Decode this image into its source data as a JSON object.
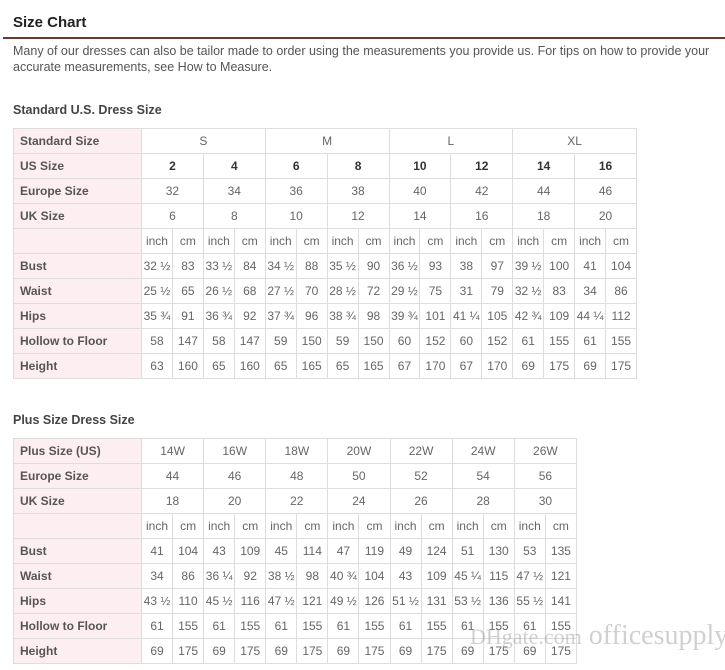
{
  "title": "Size Chart",
  "intro": "Many of our dresses can also be tailor made to order using the measurements you provide us. For tips on how to provide your accurate measurements, see How to Measure.",
  "standard": {
    "heading": "Standard U.S. Dress Size",
    "size_label": "Standard Size",
    "sizes": [
      "S",
      "M",
      "L",
      "XL"
    ],
    "us_label": "US Size",
    "us": [
      "2",
      "4",
      "6",
      "8",
      "10",
      "12",
      "14",
      "16"
    ],
    "europe_label": "Europe Size",
    "europe": [
      "32",
      "34",
      "36",
      "38",
      "40",
      "42",
      "44",
      "46"
    ],
    "uk_label": "UK Size",
    "uk": [
      "6",
      "8",
      "10",
      "12",
      "14",
      "16",
      "18",
      "20"
    ],
    "units": [
      "inch",
      "cm"
    ],
    "rows": [
      {
        "label": "Bust",
        "values": [
          "32 ½",
          "83",
          "33 ½",
          "84",
          "34 ½",
          "88",
          "35 ½",
          "90",
          "36 ½",
          "93",
          "38",
          "97",
          "39 ½",
          "100",
          "41",
          "104"
        ]
      },
      {
        "label": "Waist",
        "values": [
          "25 ½",
          "65",
          "26 ½",
          "68",
          "27 ½",
          "70",
          "28 ½",
          "72",
          "29 ½",
          "75",
          "31",
          "79",
          "32 ½",
          "83",
          "34",
          "86"
        ]
      },
      {
        "label": "Hips",
        "values": [
          "35 ¾",
          "91",
          "36 ¾",
          "92",
          "37 ¾",
          "96",
          "38 ¾",
          "98",
          "39 ¾",
          "101",
          "41 ¼",
          "105",
          "42 ¾",
          "109",
          "44 ¼",
          "112"
        ]
      },
      {
        "label": "Hollow to Floor",
        "values": [
          "58",
          "147",
          "58",
          "147",
          "59",
          "150",
          "59",
          "150",
          "60",
          "152",
          "60",
          "152",
          "61",
          "155",
          "61",
          "155"
        ]
      },
      {
        "label": "Height",
        "values": [
          "63",
          "160",
          "65",
          "160",
          "65",
          "165",
          "65",
          "165",
          "67",
          "170",
          "67",
          "170",
          "69",
          "175",
          "69",
          "175"
        ]
      }
    ]
  },
  "plus": {
    "heading": "Plus Size Dress Size",
    "size_label": "Plus Size (US)",
    "sizes": [
      "14W",
      "16W",
      "18W",
      "20W",
      "22W",
      "24W",
      "26W"
    ],
    "europe_label": "Europe Size",
    "europe": [
      "44",
      "46",
      "48",
      "50",
      "52",
      "54",
      "56"
    ],
    "uk_label": "UK Size",
    "uk": [
      "18",
      "20",
      "22",
      "24",
      "26",
      "28",
      "30"
    ],
    "units": [
      "inch",
      "cm"
    ],
    "rows": [
      {
        "label": "Bust",
        "values": [
          "41",
          "104",
          "43",
          "109",
          "45",
          "114",
          "47",
          "119",
          "49",
          "124",
          "51",
          "130",
          "53",
          "135"
        ]
      },
      {
        "label": "Waist",
        "values": [
          "34",
          "86",
          "36 ¼",
          "92",
          "38 ½",
          "98",
          "40 ¾",
          "104",
          "43",
          "109",
          "45 ¼",
          "115",
          "47 ½",
          "121"
        ]
      },
      {
        "label": "Hips",
        "values": [
          "43 ½",
          "110",
          "45 ½",
          "116",
          "47 ½",
          "121",
          "49 ½",
          "126",
          "51 ½",
          "131",
          "53 ½",
          "136",
          "55 ½",
          "141"
        ]
      },
      {
        "label": "Hollow to Floor",
        "values": [
          "61",
          "155",
          "61",
          "155",
          "61",
          "155",
          "61",
          "155",
          "61",
          "155",
          "61",
          "155",
          "61",
          "155"
        ]
      },
      {
        "label": "Height",
        "values": [
          "69",
          "175",
          "69",
          "175",
          "69",
          "175",
          "69",
          "175",
          "69",
          "175",
          "69",
          "175",
          "69",
          "175"
        ]
      }
    ]
  },
  "watermark": {
    "brand": "DHgate.com",
    "store": "officesupply"
  }
}
